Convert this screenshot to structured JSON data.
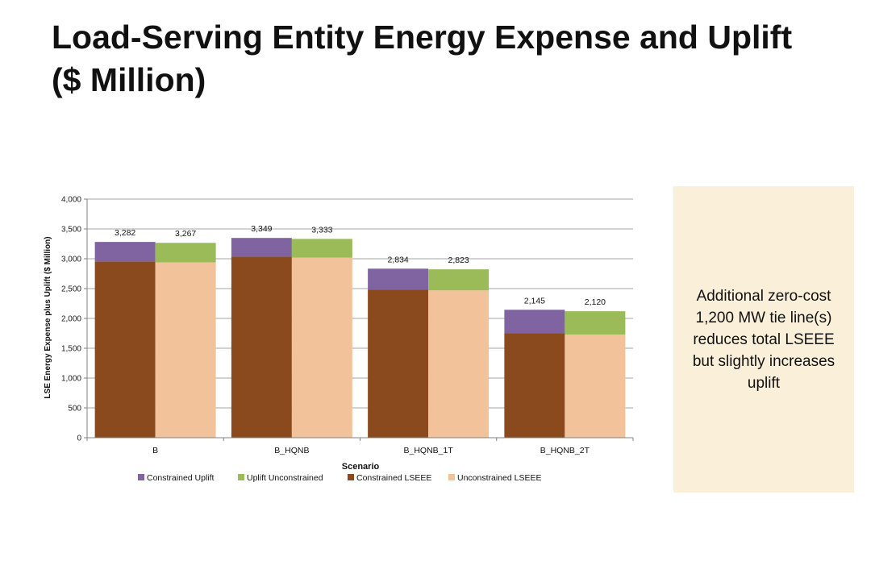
{
  "slide": {
    "title": "Load-Serving Entity Energy Expense and Uplift\n($ Million)",
    "callout": "Additional zero-cost 1,200 MW tie line(s) reduces total LSEEE but slightly increases uplift"
  },
  "chart_data": {
    "type": "bar",
    "stacked": true,
    "xlabel": "Scenario",
    "ylabel": "LSE Energy Expense plus Uplift ($ Million)",
    "ylim": [
      0,
      4000
    ],
    "yticks": [
      0,
      500,
      1000,
      1500,
      2000,
      2500,
      3000,
      3500,
      4000
    ],
    "ytick_labels": [
      "0",
      "500",
      "1,000",
      "1,500",
      "2,000",
      "2,500",
      "3,000",
      "3,500",
      "4,000"
    ],
    "grid": true,
    "legend_position": "bottom",
    "categories": [
      "B",
      "B_HQNB",
      "B_HQNB_1T",
      "B_HQNB_2T"
    ],
    "groups": [
      {
        "name": "Constrained",
        "stack": [
          {
            "name": "Constrained LSEEE",
            "color": "#8b4a1e",
            "values": [
              2955,
              3035,
              2480,
              1755
            ]
          },
          {
            "name": "Constrained Uplift",
            "color": "#8064a2",
            "values": [
              327,
              314,
              354,
              390
            ]
          }
        ],
        "total_labels": [
          "3,282",
          "3,349",
          "2,834",
          "2,145"
        ]
      },
      {
        "name": "Unconstrained",
        "stack": [
          {
            "name": "Unconstrained LSEEE",
            "color": "#f2c29b",
            "values": [
              2940,
              3020,
              2470,
              1730
            ]
          },
          {
            "name": "Uplift Unconstrained",
            "color": "#9bbb59",
            "values": [
              327,
              313,
              353,
              390
            ]
          }
        ],
        "total_labels": [
          "3,267",
          "3,333",
          "2,823",
          "2,120"
        ]
      }
    ],
    "legend": [
      {
        "name": "Constrained Uplift",
        "color": "#8064a2"
      },
      {
        "name": "Uplift Unconstrained",
        "color": "#9bbb59"
      },
      {
        "name": "Constrained LSEEE",
        "color": "#8b4a1e"
      },
      {
        "name": "Unconstrained LSEEE",
        "color": "#f2c29b"
      }
    ]
  }
}
